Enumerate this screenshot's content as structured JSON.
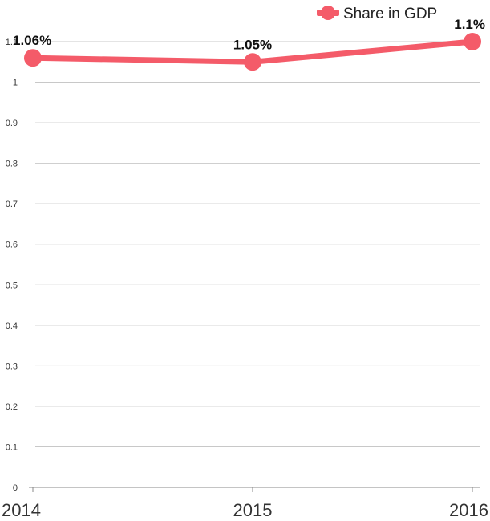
{
  "chart_data": {
    "type": "line",
    "categories": [
      "2014",
      "2015",
      "2016"
    ],
    "series": [
      {
        "name": "Share in GDP",
        "values": [
          1.06,
          1.05,
          1.1
        ],
        "labels": [
          "1.06%",
          "1.05%",
          "1.1%"
        ],
        "color": "#f45b69"
      }
    ],
    "y_ticks": [
      0,
      0.1,
      0.2,
      0.3,
      0.4,
      0.5,
      0.6,
      0.7,
      0.8,
      0.9,
      1,
      1.1
    ],
    "y_tick_labels": [
      "0",
      "0.1",
      "0.2",
      "0.3",
      "0.4",
      "0.5",
      "0.6",
      "0.7",
      "0.8",
      "0.9",
      "1",
      "1.1"
    ],
    "ylim": [
      0,
      1.1
    ],
    "grid": true,
    "legend_position": "top-right",
    "gridline_color": "#c8c8c8",
    "axis_color": "#888888"
  }
}
